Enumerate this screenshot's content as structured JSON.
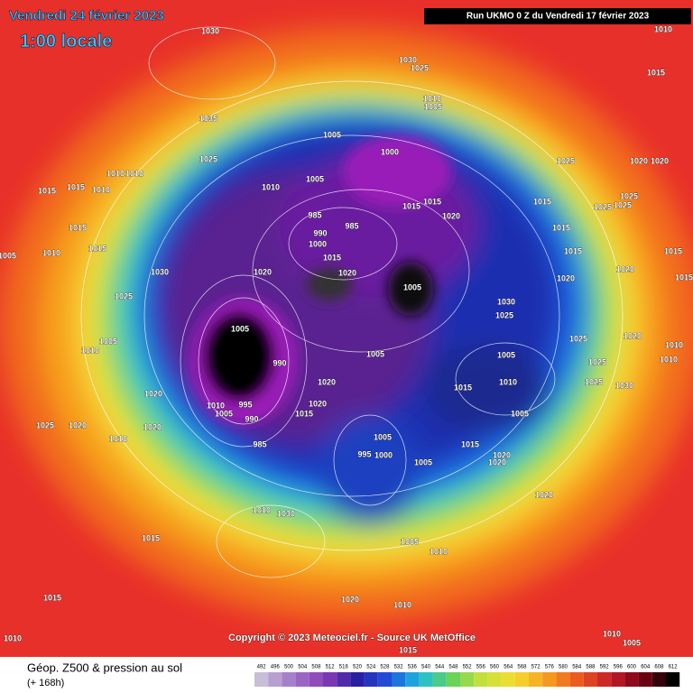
{
  "header": {
    "date": "Vendredi 24 février 2023",
    "time": "1:00 locale",
    "run": "Run UKMO 0 Z du Vendredi 17 février 2023"
  },
  "map": {
    "pressure_labels": [
      1030,
      1010,
      1030,
      1025,
      1015,
      1010,
      1005,
      1035,
      1005,
      1000,
      1025,
      1025,
      1020,
      1020,
      1010,
      1010,
      1005,
      1015,
      1015,
      1010,
      1010,
      1015,
      1025,
      1025,
      1025,
      1015,
      1015,
      985,
      985,
      1020,
      1015,
      1015,
      990,
      1000,
      1015,
      1015,
      1015,
      1010,
      1005,
      1015,
      1020,
      1020,
      1030,
      1020,
      1005,
      1020,
      1015,
      1025,
      1030,
      1025,
      1005,
      1005,
      1025,
      1020,
      1010,
      1010,
      1005,
      990,
      1005,
      1025,
      1010,
      1030,
      1025,
      1015,
      1010,
      1020,
      1020,
      1020,
      1010,
      995,
      1005,
      990,
      1015,
      1005,
      1020,
      1025,
      1020,
      1010,
      1005,
      985,
      1015,
      995,
      1000,
      1020,
      1020,
      1005,
      1020,
      1010,
      1030,
      1015,
      1005,
      1010,
      1015,
      1020,
      1010,
      1010,
      1010,
      1005,
      1015
    ],
    "copyright": "Copyright © 2023 Meteociel.fr - Source UK MetOffice"
  },
  "legend": {
    "title": "Géop. Z500 & pression au sol",
    "subtitle": "(+ 168h)",
    "scale": [
      492,
      496,
      500,
      504,
      508,
      512,
      516,
      520,
      524,
      528,
      532,
      536,
      540,
      544,
      548,
      552,
      556,
      560,
      564,
      568,
      572,
      576,
      580,
      584,
      588,
      592,
      596,
      600,
      604,
      608,
      612
    ]
  }
}
